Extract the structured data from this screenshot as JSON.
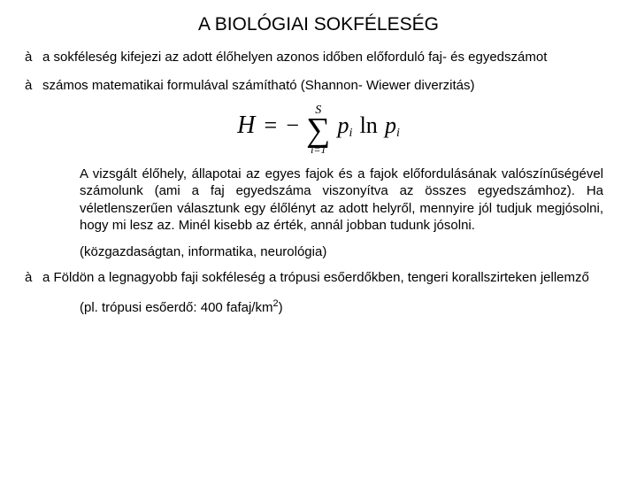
{
  "title": "A BIOLÓGIAI SOKFÉLESÉG",
  "arrow_glyph": "à",
  "bullets": {
    "b1": "a sokféleség kifejezi az adott élőhelyen azonos időben előforduló faj- és egyedszámot",
    "b2": "számos matematikai formulával számítható (Shannon- Wiewer diverzitás)",
    "b3": "a Földön a legnagyobb faji sokféleség a trópusi esőerdőkben, tengeri korallszirteken jellemző"
  },
  "formula": {
    "H": "H",
    "eq": "=",
    "minus": "−",
    "sum_top": "S",
    "sum_sym": "∑",
    "sum_bot": "i=1",
    "p": "p",
    "i": "i",
    "ln": "ln"
  },
  "explain": "A vizsgált élőhely, állapotai az egyes fajok és a fajok előfordulásának valószínűségével számolunk (ami a faj egyedszáma viszonyítva az összes egyedszámhoz). Ha véletlenszerűen választunk egy élőlényt az adott helyről, mennyire jól tudjuk megjósolni, hogy mi lesz az. Minél kisebb az érték, annál jobban tudunk jósolni.",
  "fields": "(közgazdaságtan, informatika, neurológia)",
  "example_pre": "(pl. trópusi esőerdő: 400 fafaj/km",
  "example_sup": "2",
  "example_post": ")"
}
